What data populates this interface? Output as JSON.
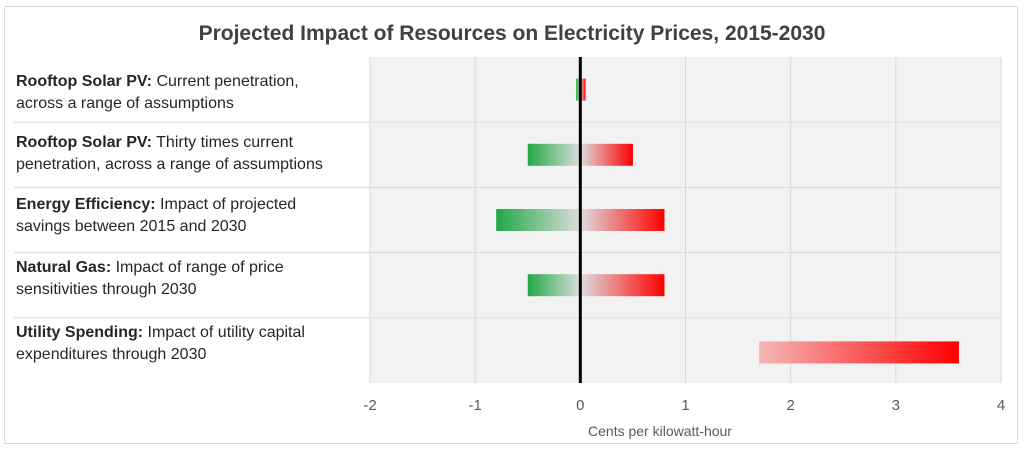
{
  "chart_data": {
    "type": "bar",
    "subtype": "floating-range",
    "title": "Projected Impact of Resources on Electricity Prices, 2015-2030",
    "xlabel": "Cents per kilowatt-hour",
    "xlim": [
      -2,
      4
    ],
    "xticks": [
      "-2",
      "-1",
      "0",
      "1",
      "2",
      "3",
      "4"
    ],
    "grid": true,
    "colors": {
      "decrease": "#21a846",
      "increase": "#ff0000",
      "mid": "#dddddd",
      "plot_bg": "#f2f2f2"
    },
    "categories": [
      {
        "bold": "Rooftop Solar PV:",
        "line1": " Current penetration,",
        "line2": "across a range of assumptions",
        "low": -0.04,
        "high": 0.05
      },
      {
        "bold": "Rooftop Solar PV:",
        "line1": " Thirty times current",
        "line2": "penetration, across a range of assumptions",
        "low": -0.5,
        "high": 0.5
      },
      {
        "bold": "Energy Efficiency:",
        "line1": " Impact of projected",
        "line2": "savings between 2015 and 2030",
        "low": -0.8,
        "high": 0.8
      },
      {
        "bold": "Natural Gas:",
        "line1": " Impact of range of price",
        "line2": "sensitivities through 2030",
        "low": -0.5,
        "high": 0.8
      },
      {
        "bold": "Utility Spending:",
        "line1": " Impact of utility capital",
        "line2": "expenditures through 2030",
        "low": 1.7,
        "high": 3.6
      }
    ]
  }
}
